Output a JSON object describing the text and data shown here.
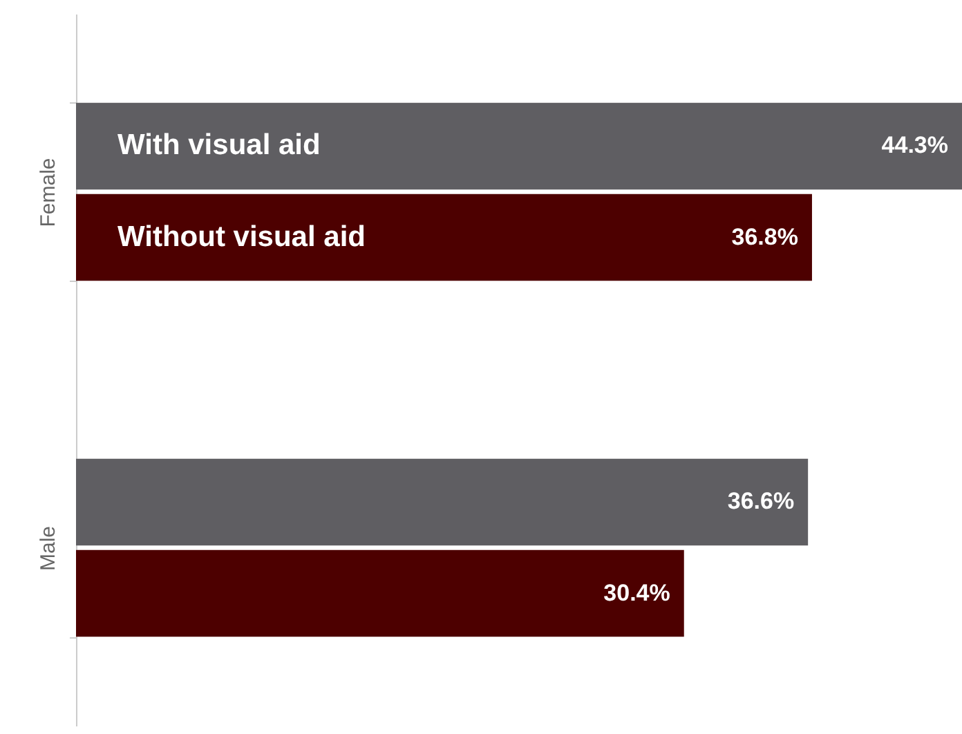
{
  "chart_data": {
    "type": "bar",
    "orientation": "horizontal",
    "categories": [
      "Female",
      "Male"
    ],
    "series": [
      {
        "name": "With visual aid",
        "color": "#5f5e62",
        "values": [
          44.3,
          36.6
        ],
        "value_labels": [
          "44.3%",
          "36.6%"
        ]
      },
      {
        "name": "Without visual aid",
        "color": "#4d0000",
        "values": [
          36.8,
          30.4
        ],
        "value_labels": [
          "36.8%",
          "30.4%"
        ]
      }
    ]
  }
}
